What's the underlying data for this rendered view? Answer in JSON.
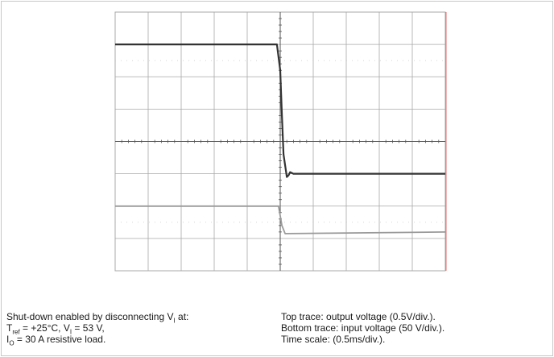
{
  "chart_data": {
    "type": "line",
    "x_divisions": 10,
    "y_divisions": 8,
    "x_range": [
      0,
      10
    ],
    "y_range": [
      0,
      8
    ],
    "x_unit_per_div": "0.5ms/div.",
    "grid": true,
    "series": [
      {
        "x": [
          0,
          4.9,
          5.0,
          5.05,
          5.1,
          5.2,
          5.25,
          5.3,
          5.4,
          10
        ],
        "y": [
          7.0,
          7.0,
          6.2,
          4.8,
          3.6,
          2.9,
          2.95,
          3.05,
          3.0,
          3.0
        ],
        "color": "#333333",
        "scale": "0.5V/div."
      },
      {
        "x": [
          0,
          4.95,
          5.05,
          5.15,
          10
        ],
        "y": [
          2.0,
          2.0,
          1.4,
          1.15,
          1.2
        ],
        "color": "#9a9a9a",
        "scale": "50 V/div."
      }
    ]
  },
  "caption": {
    "left": {
      "line1_text": "Shut-down enabled by disconnecting V",
      "line1_sub": "I",
      "line1_tail": " at:",
      "line2_a": "T",
      "line2_a_sub": "ref",
      "line2_b": " = +25°C, V",
      "line2_b_sub": "I",
      "line2_c": " = 53 V,",
      "line3_a": "I",
      "line3_a_sub": "O",
      "line3_b": " = 30 A resistive load."
    },
    "right": {
      "line1": "Top trace: output voltage (0.5V/div.).",
      "line2": "Bottom trace: input voltage (50 V/div.).",
      "line3": "Time scale: (0.5ms/div.)."
    }
  },
  "colors": {
    "grid": "#a8a8a8",
    "frame_right_accent": "#e07070"
  }
}
